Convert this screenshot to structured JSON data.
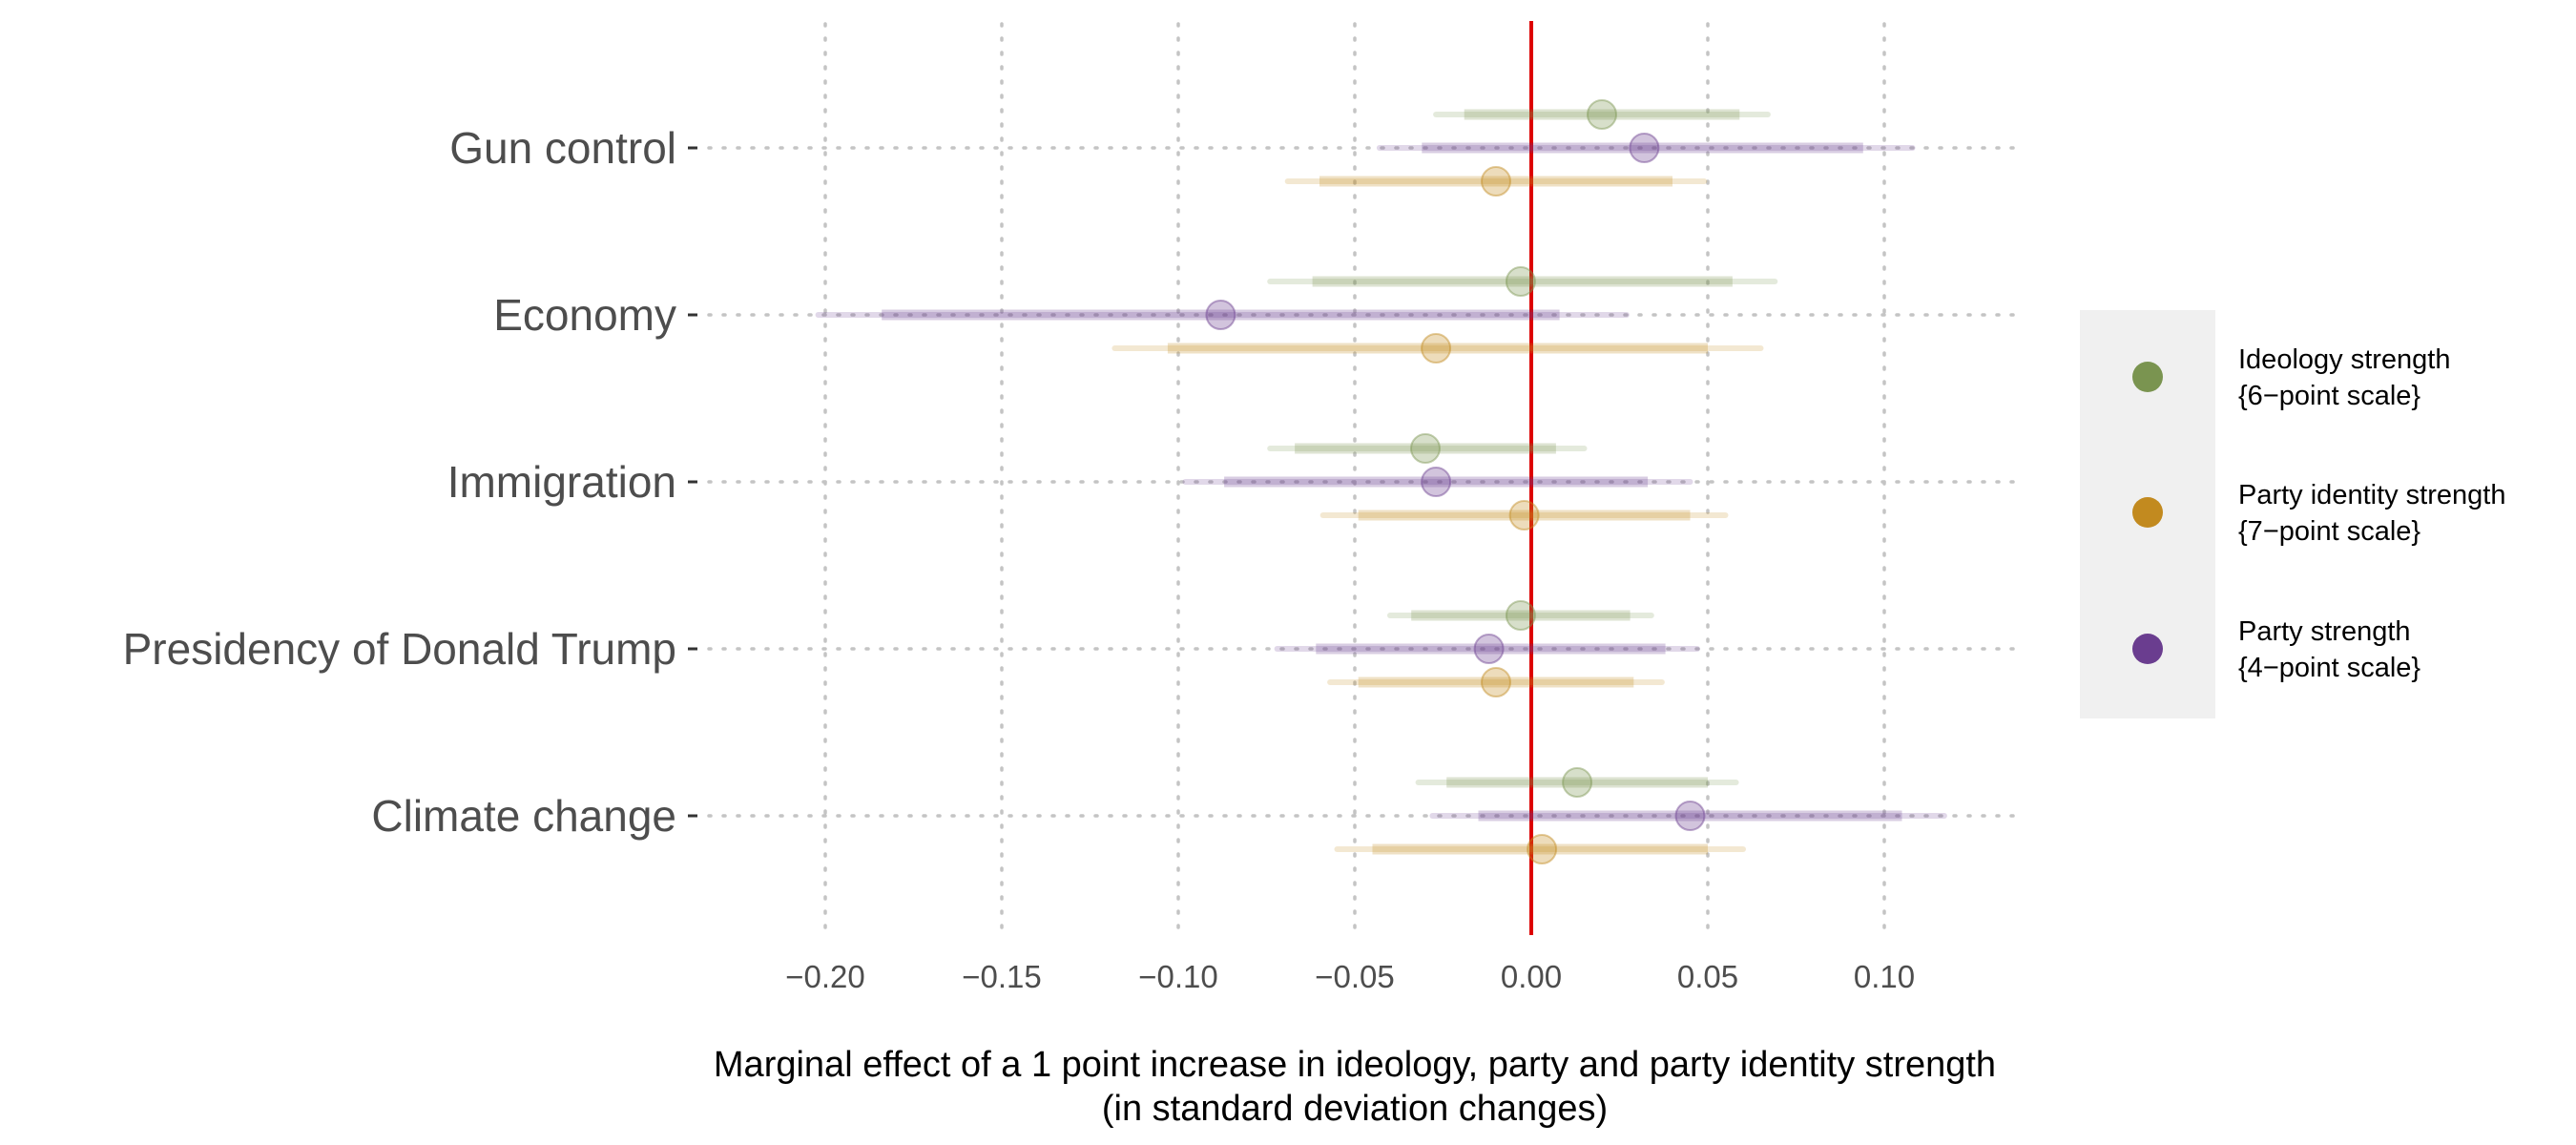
{
  "chart_data": {
    "type": "scatter",
    "subtype": "coefficient-plot",
    "title": "",
    "xlabel": "Marginal effect of a 1 point increase in ideology, party and party identity strength",
    "xlabel_line2": "(in standard deviation changes)",
    "ylabel": "",
    "xlim": [
      -0.235,
      0.14
    ],
    "x_ticks": [
      -0.2,
      -0.15,
      -0.1,
      -0.05,
      0.0,
      0.05,
      0.1
    ],
    "x_tick_labels": [
      "−0.20",
      "−0.15",
      "−0.10",
      "−0.05",
      "0.00",
      "0.05",
      "0.10"
    ],
    "reference_line": 0.0,
    "reference_line_color": "#dd0000",
    "grid": true,
    "legend_position": "right",
    "categories": [
      "Gun control",
      "Economy",
      "Immigration",
      "Presidency of Donald Trump",
      "Climate change"
    ],
    "series": [
      {
        "name": "Ideology strength",
        "name_line2": "{6−point scale}",
        "color": "#7a9450",
        "offset": -1,
        "points": [
          {
            "category": "Gun control",
            "estimate": 0.02,
            "ci90": [
              -0.019,
              0.059
            ],
            "ci95": [
              -0.027,
              0.067
            ]
          },
          {
            "category": "Economy",
            "estimate": -0.003,
            "ci90": [
              -0.062,
              0.057
            ],
            "ci95": [
              -0.074,
              0.069
            ]
          },
          {
            "category": "Immigration",
            "estimate": -0.03,
            "ci90": [
              -0.067,
              0.007
            ],
            "ci95": [
              -0.074,
              0.015
            ]
          },
          {
            "category": "Presidency of Donald Trump",
            "estimate": -0.003,
            "ci90": [
              -0.034,
              0.028
            ],
            "ci95": [
              -0.04,
              0.034
            ]
          },
          {
            "category": "Climate change",
            "estimate": 0.013,
            "ci90": [
              -0.024,
              0.05
            ],
            "ci95": [
              -0.032,
              0.058
            ]
          }
        ]
      },
      {
        "name": "Party strength",
        "name_line2": "{4−point scale}",
        "color": "#6a3d8f",
        "offset": 0,
        "points": [
          {
            "category": "Gun control",
            "estimate": 0.032,
            "ci90": [
              -0.031,
              0.094
            ],
            "ci95": [
              -0.043,
              0.108
            ]
          },
          {
            "category": "Economy",
            "estimate": -0.088,
            "ci90": [
              -0.184,
              0.008
            ],
            "ci95": [
              -0.202,
              0.027
            ]
          },
          {
            "category": "Immigration",
            "estimate": -0.027,
            "ci90": [
              -0.087,
              0.033
            ],
            "ci95": [
              -0.098,
              0.045
            ]
          },
          {
            "category": "Presidency of Donald Trump",
            "estimate": -0.012,
            "ci90": [
              -0.061,
              0.038
            ],
            "ci95": [
              -0.072,
              0.047
            ]
          },
          {
            "category": "Climate change",
            "estimate": 0.045,
            "ci90": [
              -0.015,
              0.105
            ],
            "ci95": [
              -0.028,
              0.117
            ]
          }
        ]
      },
      {
        "name": "Party identity strength",
        "name_line2": "{7−point scale}",
        "color": "#c28a1f",
        "offset": 1,
        "points": [
          {
            "category": "Gun control",
            "estimate": -0.01,
            "ci90": [
              -0.06,
              0.04
            ],
            "ci95": [
              -0.069,
              0.049
            ]
          },
          {
            "category": "Economy",
            "estimate": -0.027,
            "ci90": [
              -0.103,
              0.05
            ],
            "ci95": [
              -0.118,
              0.065
            ]
          },
          {
            "category": "Immigration",
            "estimate": -0.002,
            "ci90": [
              -0.049,
              0.045
            ],
            "ci95": [
              -0.059,
              0.055
            ]
          },
          {
            "category": "Presidency of Donald Trump",
            "estimate": -0.01,
            "ci90": [
              -0.049,
              0.029
            ],
            "ci95": [
              -0.057,
              0.037
            ]
          },
          {
            "category": "Climate change",
            "estimate": 0.003,
            "ci90": [
              -0.045,
              0.05
            ],
            "ci95": [
              -0.055,
              0.06
            ]
          }
        ]
      }
    ],
    "legend_order": [
      "Ideology strength",
      "Party identity strength",
      "Party strength"
    ]
  }
}
